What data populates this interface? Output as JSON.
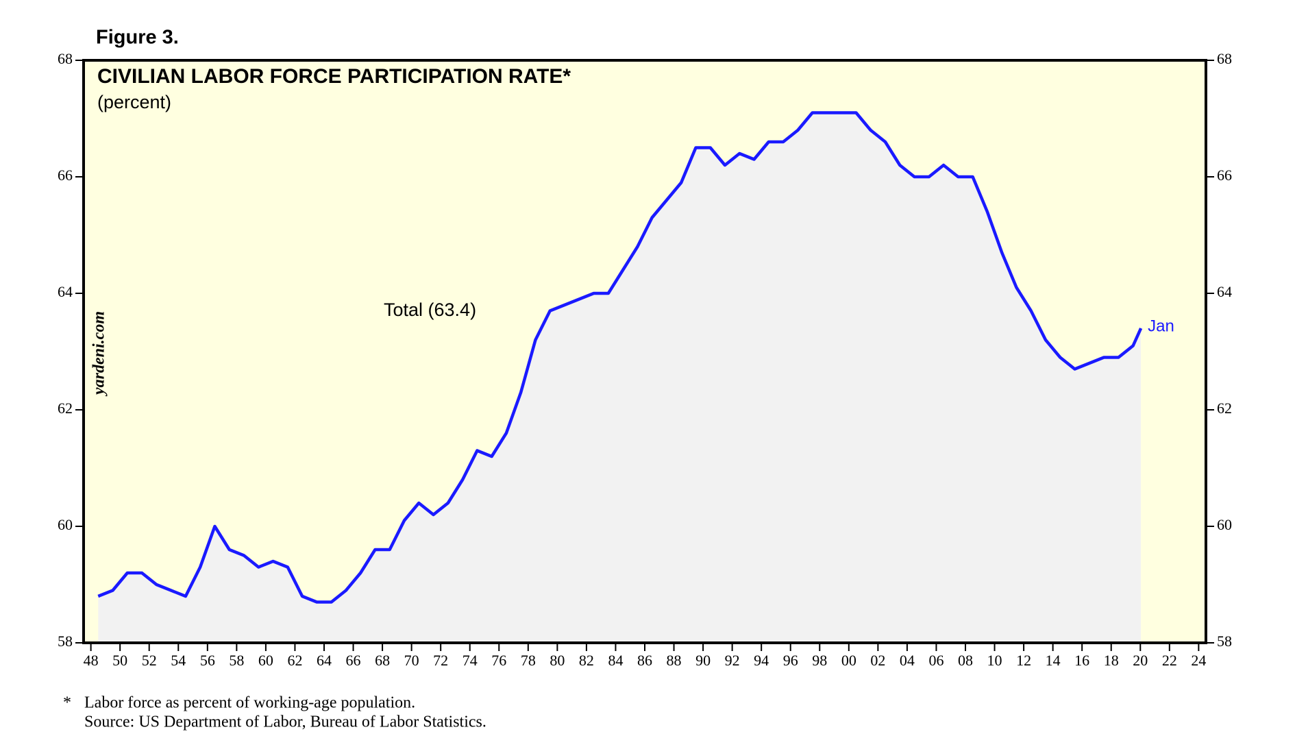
{
  "chart_data": {
    "type": "line",
    "figure_label": "Figure 3.",
    "title": "CIVILIAN LABOR FORCE PARTICIPATION RATE*",
    "subtitle": "(percent)",
    "series_label": "Total (63.4)",
    "end_label": "Jan",
    "watermark": "yardeni.com",
    "footnote_marker": "*",
    "footnote": "Labor force as percent of working-age population.",
    "source": "Source: US Department of Labor, Bureau of Labor Statistics.",
    "x": [
      1948.5,
      1949.5,
      1950.5,
      1951.5,
      1952.5,
      1953.5,
      1954.5,
      1955.5,
      1956.5,
      1957.5,
      1958.5,
      1959.5,
      1960.5,
      1961.5,
      1962.5,
      1963.5,
      1964.5,
      1965.5,
      1966.5,
      1967.5,
      1968.5,
      1969.5,
      1970.5,
      1971.5,
      1972.5,
      1973.5,
      1974.5,
      1975.5,
      1976.5,
      1977.5,
      1978.5,
      1979.5,
      1980.5,
      1981.5,
      1982.5,
      1983.5,
      1984.5,
      1985.5,
      1986.5,
      1987.5,
      1988.5,
      1989.5,
      1990.5,
      1991.5,
      1992.5,
      1993.5,
      1994.5,
      1995.5,
      1996.5,
      1997.5,
      1998.5,
      1999.5,
      2000.5,
      2001.5,
      2002.5,
      2003.5,
      2004.5,
      2005.5,
      2006.5,
      2007.5,
      2008.5,
      2009.5,
      2010.5,
      2011.5,
      2012.5,
      2013.5,
      2014.5,
      2015.5,
      2016.5,
      2017.5,
      2018.5,
      2019.5,
      2020.04
    ],
    "series": [
      {
        "name": "Total",
        "color": "#1a1aff",
        "values": [
          58.8,
          58.9,
          59.2,
          59.2,
          59.0,
          58.9,
          58.8,
          59.3,
          60.0,
          59.6,
          59.5,
          59.3,
          59.4,
          59.3,
          58.8,
          58.7,
          58.7,
          58.9,
          59.2,
          59.6,
          59.6,
          60.1,
          60.4,
          60.2,
          60.4,
          60.8,
          61.3,
          61.2,
          61.6,
          62.3,
          63.2,
          63.7,
          63.8,
          63.9,
          64.0,
          64.0,
          64.4,
          64.8,
          65.3,
          65.6,
          65.9,
          66.5,
          66.5,
          66.2,
          66.4,
          66.3,
          66.6,
          66.6,
          66.8,
          67.1,
          67.1,
          67.1,
          67.1,
          66.8,
          66.6,
          66.2,
          66.0,
          66.0,
          66.2,
          66.0,
          66.0,
          65.4,
          64.7,
          64.1,
          63.7,
          63.2,
          62.9,
          62.7,
          62.8,
          62.9,
          62.9,
          63.1,
          63.4
        ]
      }
    ],
    "xlim": [
      1947.5,
      2024.5
    ],
    "xticks": [
      {
        "value": 1948,
        "label": "48"
      },
      {
        "value": 1950,
        "label": "50"
      },
      {
        "value": 1952,
        "label": "52"
      },
      {
        "value": 1954,
        "label": "54"
      },
      {
        "value": 1956,
        "label": "56"
      },
      {
        "value": 1958,
        "label": "58"
      },
      {
        "value": 1960,
        "label": "60"
      },
      {
        "value": 1962,
        "label": "62"
      },
      {
        "value": 1964,
        "label": "64"
      },
      {
        "value": 1966,
        "label": "66"
      },
      {
        "value": 1968,
        "label": "68"
      },
      {
        "value": 1970,
        "label": "70"
      },
      {
        "value": 1972,
        "label": "72"
      },
      {
        "value": 1974,
        "label": "74"
      },
      {
        "value": 1976,
        "label": "76"
      },
      {
        "value": 1978,
        "label": "78"
      },
      {
        "value": 1980,
        "label": "80"
      },
      {
        "value": 1982,
        "label": "82"
      },
      {
        "value": 1984,
        "label": "84"
      },
      {
        "value": 1986,
        "label": "86"
      },
      {
        "value": 1988,
        "label": "88"
      },
      {
        "value": 1990,
        "label": "90"
      },
      {
        "value": 1992,
        "label": "92"
      },
      {
        "value": 1994,
        "label": "94"
      },
      {
        "value": 1996,
        "label": "96"
      },
      {
        "value": 1998,
        "label": "98"
      },
      {
        "value": 2000,
        "label": "00"
      },
      {
        "value": 2002,
        "label": "02"
      },
      {
        "value": 2004,
        "label": "04"
      },
      {
        "value": 2006,
        "label": "06"
      },
      {
        "value": 2008,
        "label": "08"
      },
      {
        "value": 2010,
        "label": "10"
      },
      {
        "value": 2012,
        "label": "12"
      },
      {
        "value": 2014,
        "label": "14"
      },
      {
        "value": 2016,
        "label": "16"
      },
      {
        "value": 2018,
        "label": "18"
      },
      {
        "value": 2020,
        "label": "20"
      },
      {
        "value": 2022,
        "label": "22"
      },
      {
        "value": 2024,
        "label": "24"
      }
    ],
    "ylim": [
      58,
      68
    ],
    "yticks": [
      58,
      60,
      62,
      64,
      66,
      68
    ]
  }
}
